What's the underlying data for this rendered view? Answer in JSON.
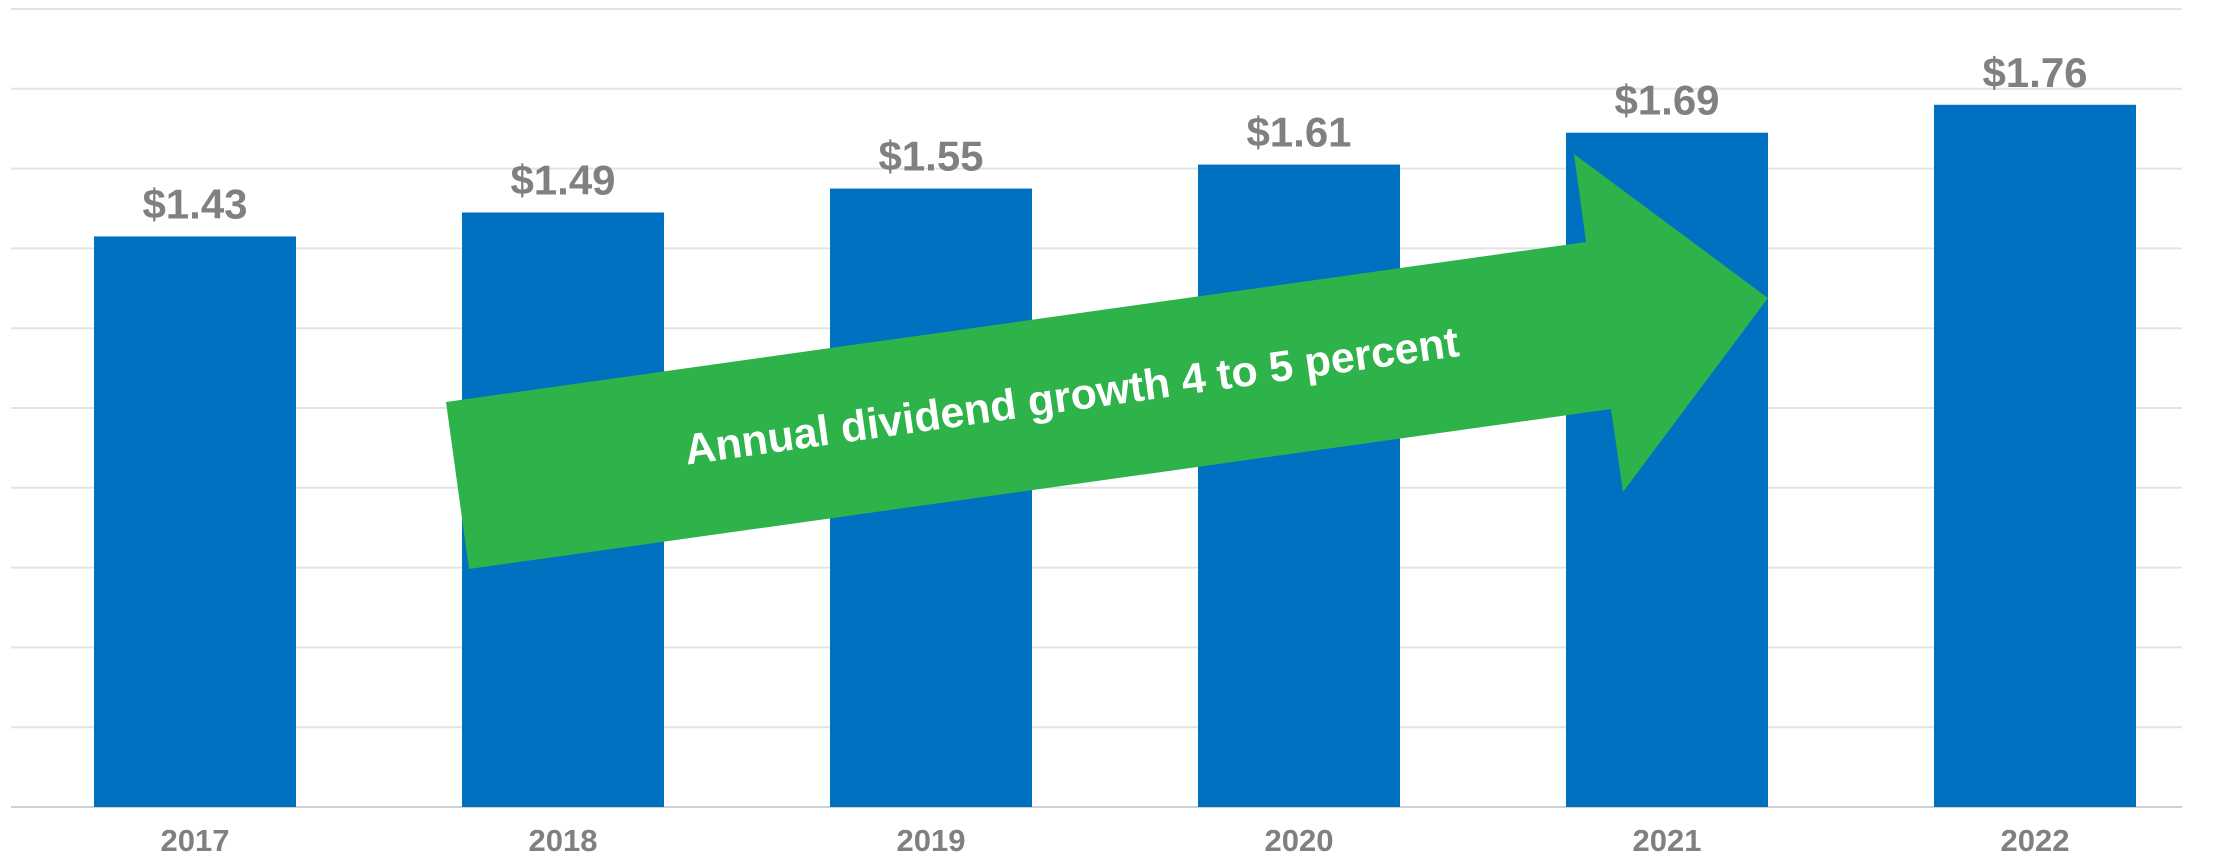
{
  "chart_data": {
    "type": "bar",
    "categories": [
      "2017",
      "2018",
      "2019",
      "2020",
      "2021",
      "2022"
    ],
    "values": [
      1.43,
      1.49,
      1.55,
      1.61,
      1.69,
      1.76
    ],
    "value_labels": [
      "$1.43",
      "$1.49",
      "$1.55",
      "$1.61",
      "$1.69",
      "$1.76"
    ],
    "color": "#0070c0",
    "ylim": [
      0,
      2.0
    ],
    "yticks": [
      0,
      0.2,
      0.4,
      0.6,
      0.8,
      1.0,
      1.2,
      1.4,
      1.6,
      1.8,
      2.0
    ],
    "grid": true,
    "annotation": "Annual dividend growth 4 to 5 percent"
  }
}
